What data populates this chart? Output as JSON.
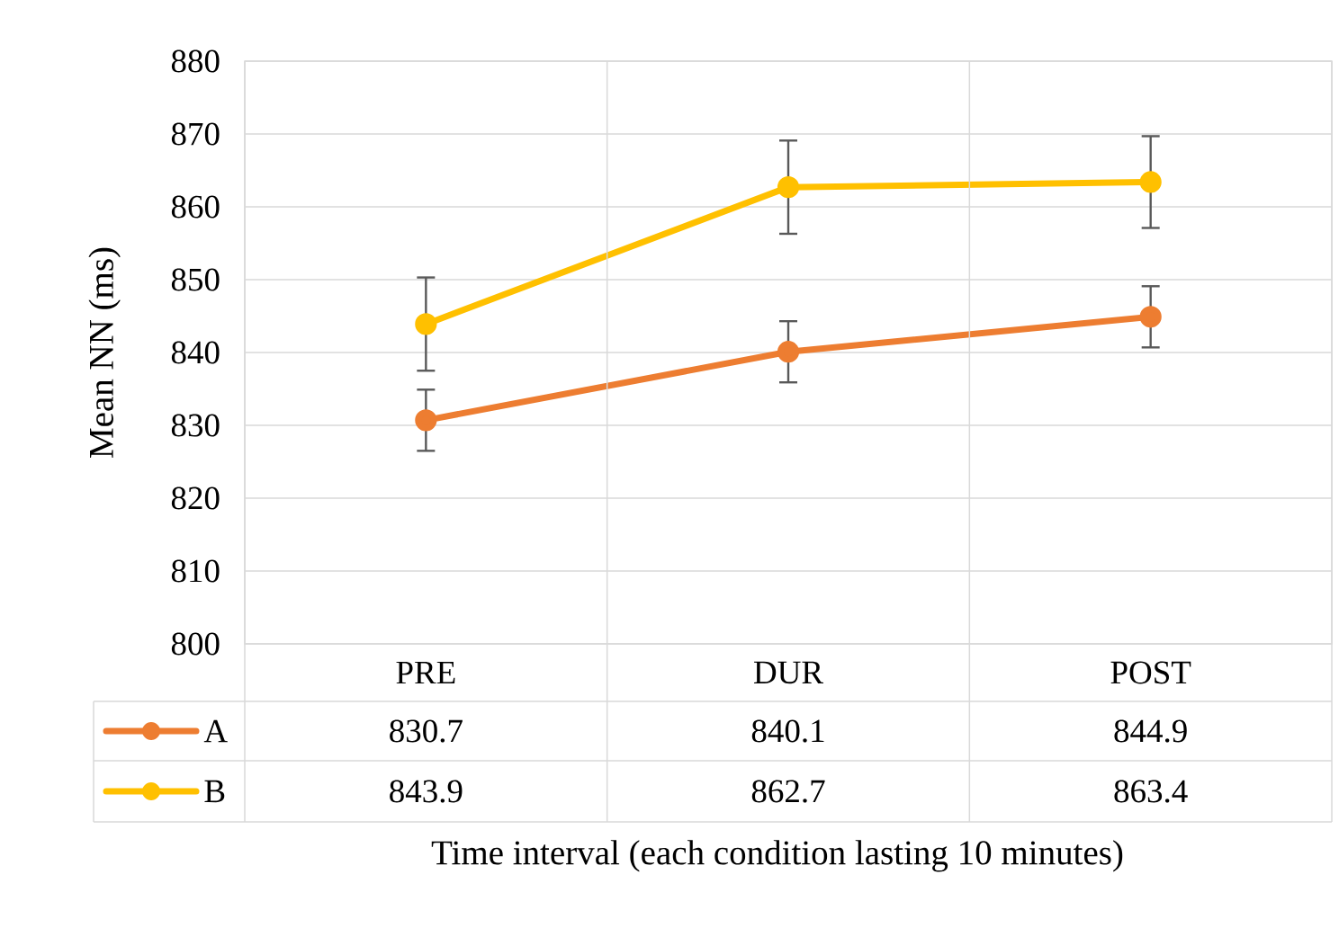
{
  "chart_data": {
    "type": "line",
    "xlabel": "Time interval (each condition lasting 10 minutes)",
    "ylabel": "Mean NN (ms)",
    "categories": [
      "PRE",
      "DUR",
      "POST"
    ],
    "series": [
      {
        "name": "A",
        "color": "#ed7d31",
        "values": [
          830.7,
          840.1,
          844.9
        ],
        "errors": [
          4.2,
          4.2,
          4.2
        ]
      },
      {
        "name": "B",
        "color": "#ffc000",
        "values": [
          843.9,
          862.7,
          863.4
        ],
        "errors": [
          6.4,
          6.4,
          6.3
        ]
      }
    ],
    "ylim": [
      800,
      880
    ],
    "yticks": [
      800,
      810,
      820,
      830,
      840,
      850,
      860,
      870,
      880
    ],
    "grid": "y",
    "legend": "bottom left",
    "data_labels": true,
    "marker": "circle",
    "line_style": "solid"
  }
}
